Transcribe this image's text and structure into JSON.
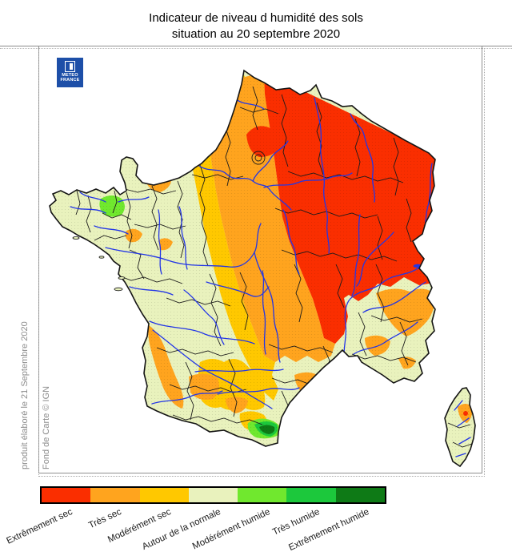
{
  "title": {
    "line1": "Indicateur de niveau d humidité des sols",
    "line2": "situation au 20 septembre 2020"
  },
  "logo": {
    "line1": "METEO",
    "line2": "FRANCE",
    "color": "#1d4fa8"
  },
  "credits": {
    "produced": "produit élaboré le 21 Septembre 2020",
    "basemap": "Fond de Carte © IGN"
  },
  "legend": {
    "items": [
      {
        "label": "Extrêmement sec",
        "color": "#fa2e00"
      },
      {
        "label": "Très sec",
        "color": "#ffa41e"
      },
      {
        "label": "Modérément sec",
        "color": "#ffc800"
      },
      {
        "label": "Autour de la normale",
        "color": "#e9f2bd"
      },
      {
        "label": "Modérément humide",
        "color": "#70e82e"
      },
      {
        "label": "Très humide",
        "color": "#1cc83c"
      },
      {
        "label": "Extrêmement humide",
        "color": "#0e7a16"
      }
    ]
  },
  "map": {
    "colors": {
      "coastline": "#141414",
      "departments": "#1a1a1a",
      "rivers": "#2336e6",
      "background": "#ffffff"
    },
    "zones": {
      "northeast": "Extrêmement sec",
      "center_north_and_massif_central": "Très sec",
      "transition_band": "Modérément sec",
      "west_southwest_southeast": "Autour de la normale",
      "central_brittany_patch": "Modérément humide",
      "eastern_pyrenees_patch": "Très humide / Extrêmement humide"
    }
  }
}
